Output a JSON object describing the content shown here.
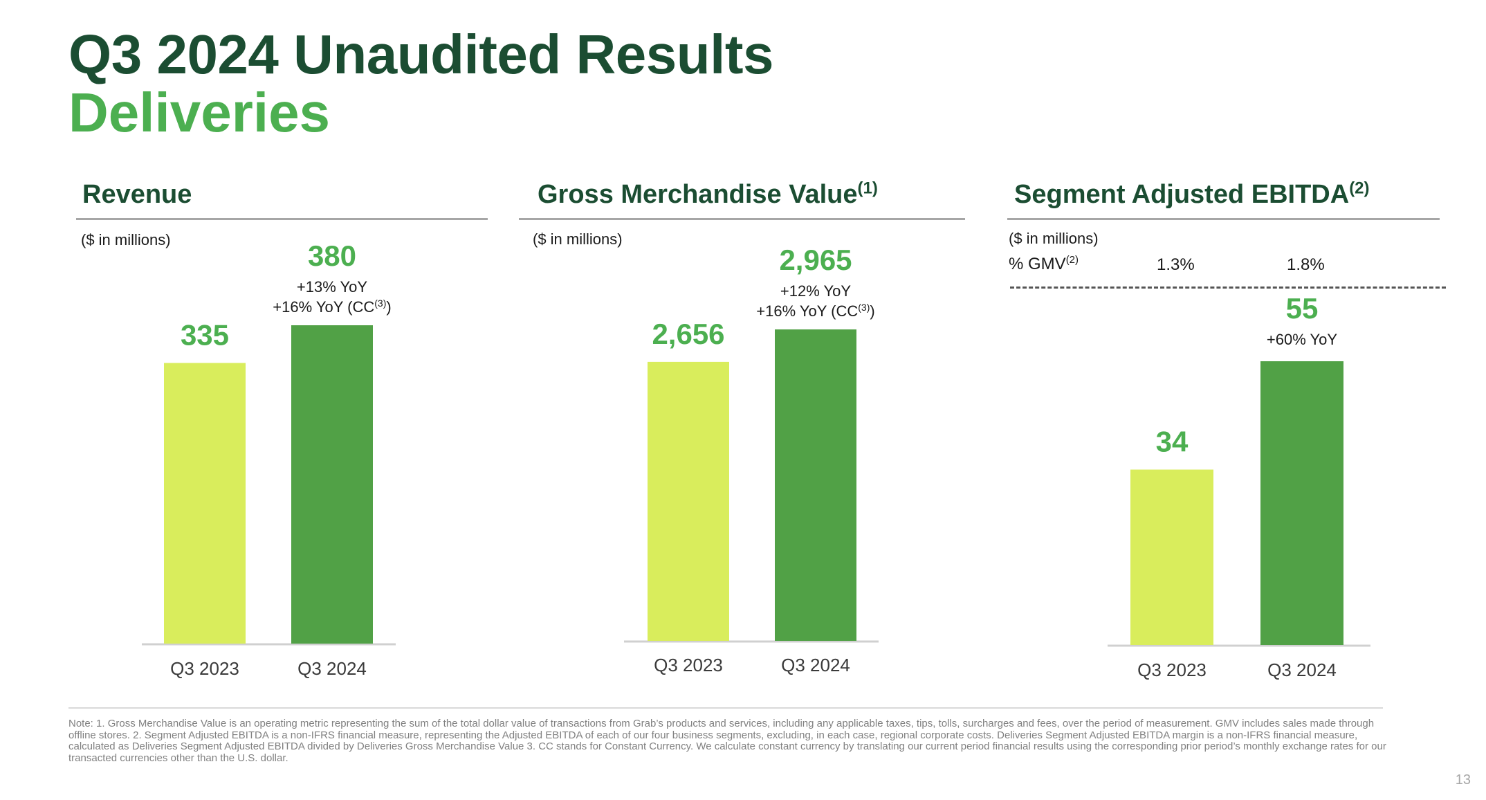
{
  "page": {
    "title": "Q3 2024 Unaudited Results",
    "subtitle": "Deliveries",
    "page_number": "13",
    "colors": {
      "dark_green": "#1b4d32",
      "bright_green": "#4caf50",
      "bar_2023": "#d9ed5c",
      "bar_2024": "#51a146"
    },
    "footnote": "Note: 1. Gross Merchandise Value is an operating metric representing the sum of the total dollar value of transactions from Grab’s products and services, including any applicable taxes, tips, tolls, surcharges and fees, over the period of measurement. GMV includes sales made through offline stores. 2. Segment Adjusted EBITDA is a non-IFRS financial measure, representing the Adjusted EBITDA of each of our four business segments, excluding, in each case, regional corporate costs. Deliveries Segment Adjusted EBITDA margin is a non-IFRS financial measure, calculated as Deliveries Segment Adjusted EBITDA divided by Deliveries Gross Merchandise Value 3. CC stands for Constant Currency. We calculate constant currency by translating our current period financial results using the corresponding prior period’s monthly exchange rates for our transacted currencies other than the U.S. dollar."
  },
  "panels": {
    "revenue": {
      "title": "Revenue",
      "title_sup": "",
      "unit": "($ in millions)"
    },
    "gmv": {
      "title": "Gross Merchandise Value",
      "title_sup": "(1)",
      "unit": "($ in millions)"
    },
    "ebitda": {
      "title": "Segment Adjusted EBITDA",
      "title_sup": "(2)",
      "unit": "($ in millions)",
      "gmv_label": "% GMV",
      "gmv_label_sup": "(2)",
      "gmv_values": [
        "1.3%",
        "1.8%"
      ]
    }
  },
  "chart_data": [
    {
      "type": "bar",
      "title": "Revenue",
      "categories": [
        "Q3 2023",
        "Q3 2024"
      ],
      "values": [
        335,
        380
      ],
      "value_labels": [
        "335",
        "380"
      ],
      "annotations": {
        "yoy": "+13% YoY",
        "yoy_cc": "+16% YoY (CC",
        "yoy_cc_sup": "(3)",
        "yoy_cc_end": ")"
      }
    },
    {
      "type": "bar",
      "title": "Gross Merchandise Value",
      "categories": [
        "Q3 2023",
        "Q3 2024"
      ],
      "values": [
        2656,
        2965
      ],
      "value_labels": [
        "2,656",
        "2,965"
      ],
      "annotations": {
        "yoy": "+12% YoY",
        "yoy_cc": "+16% YoY (CC",
        "yoy_cc_sup": "(3)",
        "yoy_cc_end": ")"
      }
    },
    {
      "type": "bar",
      "title": "Segment Adjusted EBITDA",
      "categories": [
        "Q3 2023",
        "Q3 2024"
      ],
      "values": [
        34,
        55
      ],
      "value_labels": [
        "34",
        "55"
      ],
      "annotations": {
        "yoy": "+60% YoY"
      }
    }
  ]
}
